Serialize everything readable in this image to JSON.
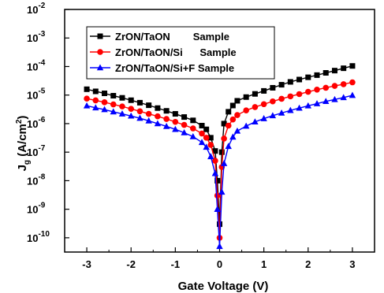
{
  "chart_data": {
    "type": "line",
    "title": "",
    "xlabel": "Gate Voltage (V)",
    "ylabel_main": "J",
    "ylabel_sub": "g",
    "ylabel_unit_pre": " (A/cm",
    "ylabel_unit_sup": "2",
    "ylabel_unit_post": ")",
    "xlim": [
      -3.5,
      3.5
    ],
    "ylim_exponent": [
      -10.5,
      -2
    ],
    "yscale": "log",
    "xticks": [
      "-3",
      "-2",
      "-1",
      "0",
      "1",
      "2",
      "3"
    ],
    "yticks": [
      {
        "base": "10",
        "exp": "-2"
      },
      {
        "base": "10",
        "exp": "-3"
      },
      {
        "base": "10",
        "exp": "-4"
      },
      {
        "base": "10",
        "exp": "-5"
      },
      {
        "base": "10",
        "exp": "-6"
      },
      {
        "base": "10",
        "exp": "-7"
      },
      {
        "base": "10",
        "exp": "-8"
      },
      {
        "base": "10",
        "exp": "-9"
      },
      {
        "base": "10",
        "exp": "-10"
      }
    ],
    "legend_position": "top-left",
    "series": [
      {
        "name": "ZrON/TaON        Sample",
        "color": "#000000",
        "marker": "square",
        "x": [
          -3.0,
          -2.8,
          -2.6,
          -2.4,
          -2.2,
          -2.0,
          -1.8,
          -1.6,
          -1.4,
          -1.2,
          -1.0,
          -0.8,
          -0.6,
          -0.4,
          -0.3,
          -0.2,
          -0.1,
          -0.05,
          0.0,
          0.05,
          0.1,
          0.2,
          0.3,
          0.4,
          0.6,
          0.8,
          1.0,
          1.2,
          1.4,
          1.6,
          1.8,
          2.0,
          2.2,
          2.4,
          2.6,
          2.8,
          3.0
        ],
        "y": [
          1.6e-05,
          1.35e-05,
          1.15e-05,
          9.5e-06,
          8e-06,
          6.6e-06,
          5.4e-06,
          4.4e-06,
          3.5e-06,
          2.8e-06,
          2.2e-06,
          1.7e-06,
          1.3e-06,
          8.5e-07,
          6.3e-07,
          3.2e-07,
          1.1e-07,
          1e-08,
          3e-10,
          1e-07,
          1e-06,
          2.6e-06,
          4.3e-06,
          6.3e-06,
          8.5e-06,
          1.1e-05,
          1.4e-05,
          1.8e-05,
          2.3e-05,
          2.9e-05,
          3.5e-05,
          4.2e-05,
          5e-05,
          6e-05,
          7.2e-05,
          8.7e-05,
          0.000105
        ]
      },
      {
        "name": "ZrON/TaON/Si      Sample",
        "color": "#ff0000",
        "marker": "circle",
        "x": [
          -3.0,
          -2.8,
          -2.6,
          -2.4,
          -2.2,
          -2.0,
          -1.8,
          -1.6,
          -1.4,
          -1.2,
          -1.0,
          -0.8,
          -0.6,
          -0.4,
          -0.3,
          -0.2,
          -0.1,
          -0.05,
          0.0,
          0.05,
          0.1,
          0.2,
          0.3,
          0.4,
          0.6,
          0.8,
          1.0,
          1.2,
          1.4,
          1.6,
          1.8,
          2.0,
          2.2,
          2.4,
          2.6,
          2.8,
          3.0
        ],
        "y": [
          7.5e-06,
          6.5e-06,
          5.6e-06,
          4.7e-06,
          4e-06,
          3.3e-06,
          2.7e-06,
          2.2e-06,
          1.8e-06,
          1.45e-06,
          1.15e-06,
          9e-07,
          6.8e-07,
          4.5e-07,
          3.2e-07,
          1.8e-07,
          5e-08,
          3e-09,
          1e-10,
          3e-08,
          3e-07,
          8.5e-07,
          1.4e-06,
          2e-06,
          2.9e-06,
          3.8e-06,
          4.8e-06,
          6e-06,
          7.4e-06,
          9e-06,
          1.08e-05,
          1.3e-05,
          1.55e-05,
          1.8e-05,
          2.1e-05,
          2.4e-05,
          2.8e-05
        ]
      },
      {
        "name": "ZrON/TaON/Si+F Sample",
        "color": "#0000ff",
        "marker": "triangle",
        "x": [
          -3.0,
          -2.8,
          -2.6,
          -2.4,
          -2.2,
          -2.0,
          -1.8,
          -1.6,
          -1.4,
          -1.2,
          -1.0,
          -0.8,
          -0.6,
          -0.4,
          -0.3,
          -0.2,
          -0.1,
          -0.05,
          0.0,
          0.05,
          0.1,
          0.2,
          0.3,
          0.4,
          0.6,
          0.8,
          1.0,
          1.2,
          1.4,
          1.6,
          1.8,
          2.0,
          2.2,
          2.4,
          2.6,
          2.8,
          3.0
        ],
        "y": [
          4.2e-06,
          3.6e-06,
          3.1e-06,
          2.6e-06,
          2.2e-06,
          1.85e-06,
          1.55e-06,
          1.25e-06,
          1e-06,
          8e-07,
          6.3e-07,
          4.8e-07,
          3.5e-07,
          2.2e-07,
          1.5e-07,
          7e-08,
          1.8e-08,
          1e-09,
          5e-11,
          4e-09,
          4e-08,
          1.6e-07,
          3.4e-07,
          5.5e-07,
          8.2e-07,
          1.15e-06,
          1.5e-06,
          1.9e-06,
          2.35e-06,
          2.9e-06,
          3.5e-06,
          4.2e-06,
          5e-06,
          6e-06,
          7e-06,
          8.2e-06,
          9.8e-06
        ]
      }
    ]
  }
}
